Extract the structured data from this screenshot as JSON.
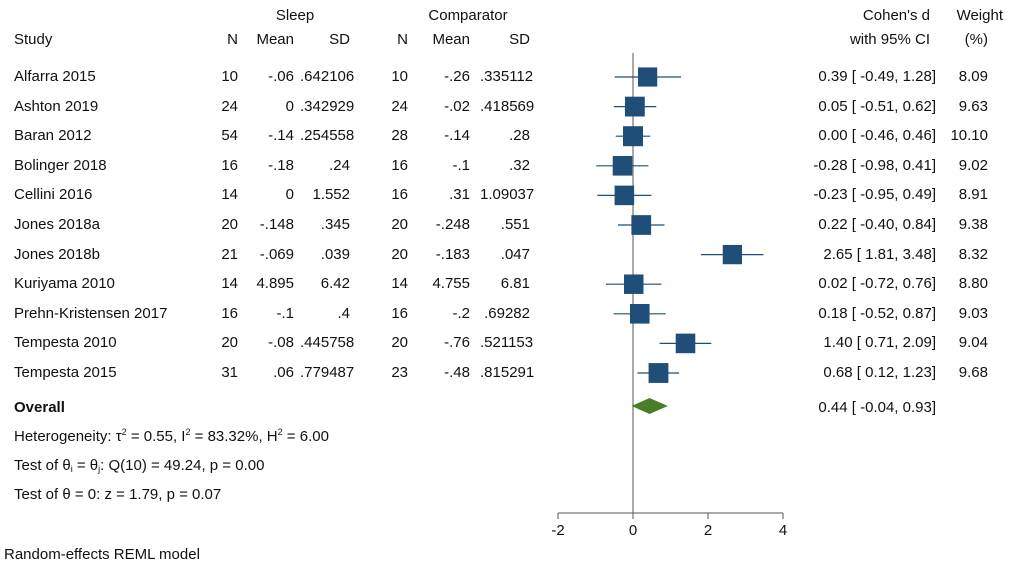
{
  "header": {
    "sleep_group": "Sleep",
    "comparator_group": "Comparator",
    "study": "Study",
    "n": "N",
    "mean": "Mean",
    "sd": "SD",
    "effect_line1": "Cohen's d",
    "effect_line2": "with 95% CI",
    "weight_line1": "Weight",
    "weight_line2": "(%)"
  },
  "footer": {
    "overall_label": "Overall",
    "overall_ci": "0.44 [ -0.04,  0.93]",
    "heterogeneity_prefix": "Heterogeneity: τ",
    "heterogeneity_tau_exp": "2",
    "heterogeneity_mid1": " = 0.55, I",
    "heterogeneity_i_exp": "2",
    "heterogeneity_mid2": " = 83.32%, H",
    "heterogeneity_h_exp": "2",
    "heterogeneity_end": " = 6.00",
    "test_q_a": "Test of θ",
    "test_q_sub_i": "i",
    "test_q_b": " = θ",
    "test_q_sub_j": "j",
    "test_q_c": ": Q(10) = 49.24, p = 0.00",
    "test_theta": "Test of θ = 0: z = 1.79, p = 0.07",
    "model": "Random-effects REML model"
  },
  "chart_data": {
    "type": "forest",
    "x_ticks": [
      "-2",
      "0",
      "2",
      "4"
    ],
    "xlim": [
      -2,
      4
    ],
    "null_line": 0,
    "colors": {
      "marker": "#1f4e79",
      "diamond": "#4a7d2a",
      "ci": "#1f4e79",
      "axis": "#555555"
    },
    "studies": [
      {
        "study": "Alfarra 2015",
        "n1": "10",
        "mean1": "-.06",
        "sd1": ".642106",
        "n2": "10",
        "mean2": "-.26",
        "sd2": ".335112",
        "d": 0.39,
        "lo": -0.49,
        "hi": 1.28,
        "ci_text": "0.39 [ -0.49,  1.28]",
        "weight": "8.09"
      },
      {
        "study": "Ashton 2019",
        "n1": "24",
        "mean1": "0",
        "sd1": ".342929",
        "n2": "24",
        "mean2": "-.02",
        "sd2": ".418569",
        "d": 0.05,
        "lo": -0.51,
        "hi": 0.62,
        "ci_text": "0.05 [ -0.51,  0.62]",
        "weight": "9.63"
      },
      {
        "study": "Baran 2012",
        "n1": "54",
        "mean1": "-.14",
        "sd1": ".254558",
        "n2": "28",
        "mean2": "-.14",
        "sd2": ".28",
        "d": 0.0,
        "lo": -0.46,
        "hi": 0.46,
        "ci_text": "0.00 [ -0.46,  0.46]",
        "weight": "10.10"
      },
      {
        "study": "Bolinger 2018",
        "n1": "16",
        "mean1": "-.18",
        "sd1": ".24",
        "n2": "16",
        "mean2": "-.1",
        "sd2": ".32",
        "d": -0.28,
        "lo": -0.98,
        "hi": 0.41,
        "ci_text": "-0.28 [ -0.98,  0.41]",
        "weight": "9.02"
      },
      {
        "study": "Cellini 2016",
        "n1": "14",
        "mean1": "0",
        "sd1": "1.552",
        "n2": "16",
        "mean2": ".31",
        "sd2": "1.09037",
        "d": -0.23,
        "lo": -0.95,
        "hi": 0.49,
        "ci_text": "-0.23 [ -0.95,  0.49]",
        "weight": "8.91"
      },
      {
        "study": "Jones 2018a",
        "n1": "20",
        "mean1": "-.148",
        "sd1": ".345",
        "n2": "20",
        "mean2": "-.248",
        "sd2": ".551",
        "d": 0.22,
        "lo": -0.4,
        "hi": 0.84,
        "ci_text": "0.22 [ -0.40,  0.84]",
        "weight": "9.38"
      },
      {
        "study": "Jones 2018b",
        "n1": "21",
        "mean1": "-.069",
        "sd1": ".039",
        "n2": "20",
        "mean2": "-.183",
        "sd2": ".047",
        "d": 2.65,
        "lo": 1.81,
        "hi": 3.48,
        "ci_text": "2.65 [  1.81,  3.48]",
        "weight": "8.32"
      },
      {
        "study": "Kuriyama 2010",
        "n1": "14",
        "mean1": "4.895",
        "sd1": "6.42",
        "n2": "14",
        "mean2": "4.755",
        "sd2": "6.81",
        "d": 0.02,
        "lo": -0.72,
        "hi": 0.76,
        "ci_text": "0.02 [ -0.72,  0.76]",
        "weight": "8.80"
      },
      {
        "study": "Prehn-Kristensen 2017",
        "n1": "16",
        "mean1": "-.1",
        "sd1": ".4",
        "n2": "16",
        "mean2": "-.2",
        "sd2": ".69282",
        "d": 0.18,
        "lo": -0.52,
        "hi": 0.87,
        "ci_text": "0.18 [ -0.52,  0.87]",
        "weight": "9.03"
      },
      {
        "study": "Tempesta 2010",
        "n1": "20",
        "mean1": "-.08",
        "sd1": ".445758",
        "n2": "20",
        "mean2": "-.76",
        "sd2": ".521153",
        "d": 1.4,
        "lo": 0.71,
        "hi": 2.09,
        "ci_text": "1.40 [  0.71,  2.09]",
        "weight": "9.04"
      },
      {
        "study": "Tempesta 2015",
        "n1": "31",
        "mean1": ".06",
        "sd1": ".779487",
        "n2": "23",
        "mean2": "-.48",
        "sd2": ".815291",
        "d": 0.68,
        "lo": 0.12,
        "hi": 1.23,
        "ci_text": "0.68 [  0.12,  1.23]",
        "weight": "9.68"
      }
    ],
    "overall": {
      "d": 0.44,
      "lo": -0.04,
      "hi": 0.93
    }
  }
}
